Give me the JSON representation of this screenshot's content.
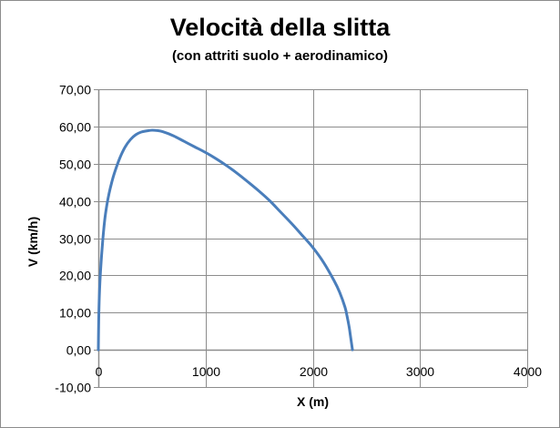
{
  "chart_data": {
    "type": "scatter",
    "title": "Velocità della slitta",
    "subtitle": "(con attriti suolo + aerodinamico)",
    "xlabel": "X (m)",
    "ylabel": "V (km/h)",
    "xlim": [
      0,
      4000
    ],
    "ylim": [
      -10,
      70
    ],
    "x_ticks": [
      "0",
      "1000",
      "2000",
      "3000",
      "4000"
    ],
    "y_ticks": [
      "-10,00",
      "0,00",
      "10,00",
      "20,00",
      "30,00",
      "40,00",
      "50,00",
      "60,00",
      "70,00"
    ],
    "x_tick_values": [
      0,
      1000,
      2000,
      3000,
      4000
    ],
    "y_tick_values": [
      -10,
      0,
      10,
      20,
      30,
      40,
      50,
      60,
      70
    ],
    "grid": true,
    "line_style": "smooth",
    "colors": {
      "series": "#4a7ebb",
      "grid": "#8c8c8c"
    },
    "series": [
      {
        "x": [
          0,
          2,
          5,
          10,
          20,
          40,
          60,
          80,
          100,
          125,
          150,
          200,
          250,
          300,
          350,
          400,
          450,
          500,
          550,
          600,
          700,
          800,
          900,
          1000,
          1100,
          1200,
          1300,
          1400,
          1500,
          1600,
          1700,
          1800,
          1900,
          2000,
          2100,
          2200,
          2250,
          2300,
          2320,
          2340,
          2350,
          2360,
          2370
        ],
        "y": [
          0,
          5,
          10,
          15,
          21,
          29,
          35,
          39,
          42,
          45,
          47.5,
          51.5,
          54.5,
          56.5,
          57.8,
          58.5,
          58.8,
          59,
          58.9,
          58.6,
          57.5,
          56,
          54.5,
          53,
          51.3,
          49.4,
          47.3,
          45,
          42.6,
          40,
          37,
          34,
          30.8,
          27.5,
          23.5,
          18.5,
          15.5,
          11.5,
          9,
          6,
          4,
          2,
          0
        ]
      }
    ]
  }
}
